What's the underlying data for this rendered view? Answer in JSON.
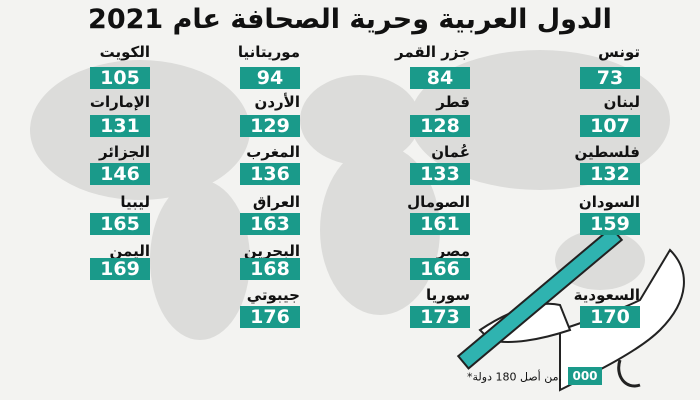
{
  "header": {
    "title": "الدول العربية وحرية الصحافة عام 2021"
  },
  "items": [
    {
      "name": "تونس",
      "rank": 73
    },
    {
      "name": "جزر القمر",
      "rank": 84
    },
    {
      "name": "موريتانيا",
      "rank": 94
    },
    {
      "name": "الكويت",
      "rank": 105
    },
    {
      "name": "لبنان",
      "rank": 107
    },
    {
      "name": "قطر",
      "rank": 128
    },
    {
      "name": "الأردن",
      "rank": 129
    },
    {
      "name": "الإمارات",
      "rank": 131
    },
    {
      "name": "فلسطين",
      "rank": 132
    },
    {
      "name": "عُمان",
      "rank": 133
    },
    {
      "name": "المغرب",
      "rank": 136
    },
    {
      "name": "الجزائر",
      "rank": 146
    },
    {
      "name": "السودان",
      "rank": 159
    },
    {
      "name": "الصومال",
      "rank": 161
    },
    {
      "name": "العراق",
      "rank": 163
    },
    {
      "name": "ليبيا",
      "rank": 165
    },
    {
      "name": "مصر",
      "rank": 166
    },
    {
      "name": "البحرين",
      "rank": 168
    },
    {
      "name": "اليمن",
      "rank": 169
    },
    {
      "name": "السعودية",
      "rank": 170
    },
    {
      "name": "سوريا",
      "rank": 173
    },
    {
      "name": "جيبوتي",
      "rank": 176
    }
  ],
  "footnote": {
    "sample": "000",
    "text": "*من أصل 180 دولة."
  }
}
